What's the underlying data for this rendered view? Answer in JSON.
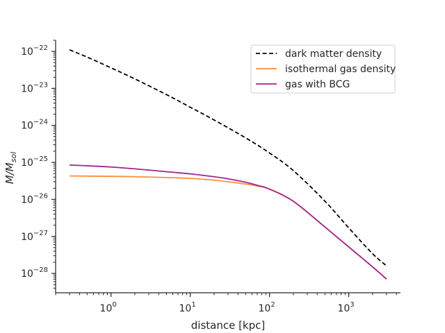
{
  "chart_data": {
    "type": "line",
    "xlabel": "distance [kpc]",
    "ylabel": {
      "main": "M/M",
      "sub": "sol"
    },
    "xscale": "log",
    "yscale": "log",
    "xlim": [
      0.2,
      4500
    ],
    "ylim": [
      3e-29,
      2e-22
    ],
    "grid": false,
    "legend_position": "top-right",
    "x_ticks": [
      {
        "value": 1,
        "base": "10",
        "exp": "0"
      },
      {
        "value": 10,
        "base": "10",
        "exp": "1"
      },
      {
        "value": 100,
        "base": "10",
        "exp": "2"
      },
      {
        "value": 1000,
        "base": "10",
        "exp": "3"
      }
    ],
    "y_ticks": [
      {
        "value": 1e-28,
        "base": "10",
        "exp": "−28"
      },
      {
        "value": 1e-27,
        "base": "10",
        "exp": "−27"
      },
      {
        "value": 1e-26,
        "base": "10",
        "exp": "−26"
      },
      {
        "value": 1e-25,
        "base": "10",
        "exp": "−25"
      },
      {
        "value": 1e-24,
        "base": "10",
        "exp": "−24"
      },
      {
        "value": 1e-23,
        "base": "10",
        "exp": "−23"
      },
      {
        "value": 1e-22,
        "base": "10",
        "exp": "−22"
      }
    ],
    "series": [
      {
        "name": "dark matter density",
        "color": "#000000",
        "style": "dashed",
        "x": [
          0.3,
          0.5,
          1,
          2,
          5,
          10,
          20,
          50,
          100,
          200,
          500,
          1000,
          2000,
          3000
        ],
        "y": [
          1.1e-22,
          7e-23,
          3.6e-23,
          1.8e-23,
          6.8e-24,
          3.1e-24,
          1.4e-24,
          4.6e-25,
          1.8e-25,
          6e-26,
          9e-27,
          1.7e-27,
          3.4e-28,
          1.6e-28
        ]
      },
      {
        "name": "isothermal gas density",
        "color": "#ff8c3a",
        "style": "solid",
        "x": [
          0.3,
          1,
          2,
          5,
          10,
          20,
          30,
          50,
          70,
          100,
          200,
          500,
          1000,
          2000,
          3000
        ],
        "y": [
          4.3e-26,
          4.2e-26,
          4.1e-26,
          3.9e-26,
          3.7e-26,
          3.3e-26,
          3e-26,
          2.6e-26,
          2.3e-26,
          1.9e-26,
          8.9e-27,
          1.8e-27,
          5.2e-28,
          1.5e-28,
          7e-29
        ]
      },
      {
        "name": "gas with BCG",
        "color": "#a3238e",
        "style": "solid",
        "x": [
          0.3,
          0.5,
          1,
          2,
          5,
          10,
          20,
          30,
          50,
          70,
          100,
          200,
          500,
          1000,
          2000,
          3000
        ],
        "y": [
          8.5e-26,
          8.1e-26,
          7.5e-26,
          6.7e-26,
          5.6e-26,
          4.9e-26,
          4.1e-26,
          3.6e-26,
          2.9e-26,
          2.4e-26,
          1.9e-26,
          8.9e-27,
          1.8e-27,
          5.2e-28,
          1.5e-28,
          7e-29
        ]
      }
    ]
  }
}
